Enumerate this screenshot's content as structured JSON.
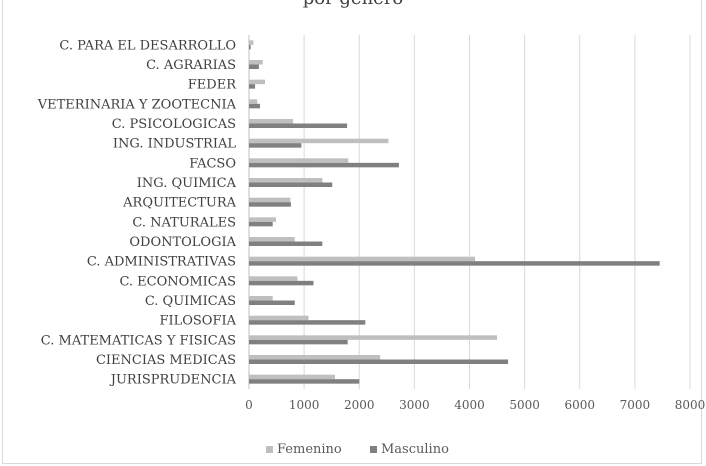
{
  "chart_data": {
    "type": "bar",
    "orientation": "horizontal",
    "title": "por género",
    "categories": [
      "C. PARA EL DESARROLLO",
      "C. AGRARIAS",
      "FEDER",
      "VETERINARIA Y ZOOTECNIA",
      "C. PSICOLOGICAS",
      "ING. INDUSTRIAL",
      "FACSO",
      "ING. QUIMICA",
      "ARQUITECTURA",
      "C. NATURALES",
      "ODONTOLOGIA",
      "C. ADMINISTRATIVAS",
      "C. ECONOMICAS",
      "C. QUIMICAS",
      "FILOSOFIA",
      "C. MATEMATICAS Y FISICAS",
      "CIENCIAS MEDICAS",
      "JURISPRUDENCIA"
    ],
    "series": [
      {
        "name": "Femenino",
        "color": "#bfbfbf",
        "values": [
          80,
          250,
          290,
          150,
          800,
          2530,
          1800,
          1330,
          750,
          490,
          830,
          4100,
          880,
          430,
          1080,
          4500,
          2380,
          1560
        ]
      },
      {
        "name": "Masculino",
        "color": "#808080",
        "values": [
          30,
          180,
          110,
          200,
          1780,
          950,
          2720,
          1510,
          760,
          430,
          1330,
          7450,
          1170,
          830,
          2110,
          1790,
          4700,
          2000
        ]
      }
    ],
    "xlim": [
      0,
      8000
    ],
    "xticks": [
      "0",
      "1000",
      "2000",
      "3000",
      "4000",
      "5000",
      "6000",
      "7000",
      "8000"
    ],
    "grid": true,
    "legend": "bottom"
  }
}
